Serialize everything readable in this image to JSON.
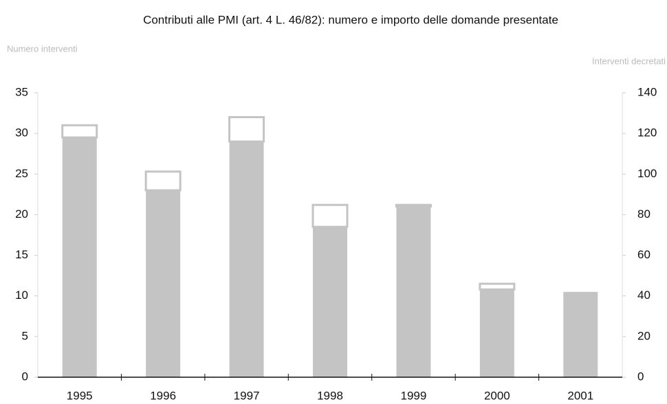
{
  "chart_data": {
    "type": "bar",
    "stacked": true,
    "title": "Contributi alle PMI (art. 4 L. 46/82): numero e importo delle domande presentate",
    "ylabel": "Numero interventi",
    "y2label": "Interventi decretati",
    "categories": [
      "1995",
      "1996",
      "1997",
      "1998",
      "1999",
      "2000",
      "2001"
    ],
    "series": [
      {
        "color": "#c4c4c4",
        "values": [
          29.5,
          23,
          29,
          18.5,
          21,
          10.8,
          10.5
        ]
      },
      {
        "color": "#ffffff",
        "values": [
          1.5,
          2.3,
          3,
          2.7,
          0.2,
          0.7,
          0
        ]
      }
    ],
    "ylim": [
      0,
      35
    ],
    "yticks": [
      0,
      5,
      10,
      15,
      20,
      25,
      30,
      35
    ],
    "y2lim": [
      0,
      140
    ],
    "y2ticks": [
      0,
      20,
      40,
      60,
      80,
      100,
      120,
      140
    ]
  }
}
